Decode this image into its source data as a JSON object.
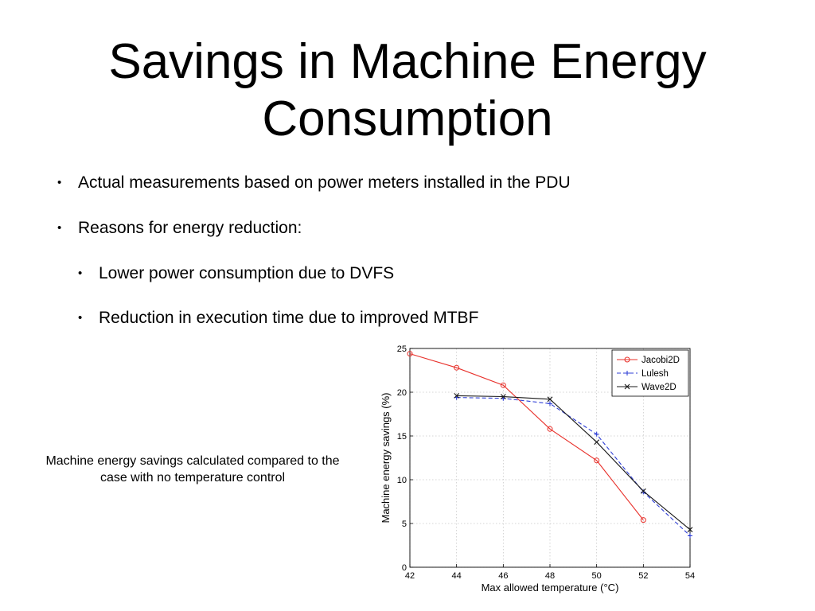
{
  "slide": {
    "title_line1": "Savings in Machine Energy",
    "title_line2": "Consumption",
    "bullets": [
      {
        "text": "Actual measurements based on power meters installed in the PDU",
        "level": 1
      },
      {
        "text": "Reasons for energy reduction:",
        "level": 1
      },
      {
        "text": "Lower power consumption due to DVFS",
        "level": 2
      },
      {
        "text": "Reduction in execution time due to improved MTBF",
        "level": 2
      }
    ],
    "bullet_glyph": "•",
    "caption": "Machine energy savings calculated compared to the case with no temperature control"
  },
  "chart_data": {
    "type": "line",
    "xlabel": "Max allowed temperature (°C)",
    "ylabel": "Machine energy savings (%)",
    "xlim": [
      42,
      54
    ],
    "ylim": [
      0,
      25
    ],
    "xticks": [
      42,
      44,
      46,
      48,
      50,
      52,
      54
    ],
    "yticks": [
      0,
      5,
      10,
      15,
      20,
      25
    ],
    "grid": true,
    "legend_position": "top-right",
    "series": [
      {
        "name": "Jacobi2D",
        "color": "#e8302a",
        "marker": "circle",
        "line": "solid",
        "x": [
          42,
          44,
          46,
          48,
          50,
          52
        ],
        "y": [
          24.4,
          22.8,
          20.8,
          15.8,
          12.2,
          5.4
        ]
      },
      {
        "name": "Lulesh",
        "color": "#2f3fd6",
        "marker": "plus",
        "line": "dashed",
        "x": [
          44,
          46,
          48,
          50,
          52,
          54
        ],
        "y": [
          19.4,
          19.3,
          18.7,
          15.2,
          8.6,
          3.6
        ]
      },
      {
        "name": "Wave2D",
        "color": "#1a1a1a",
        "marker": "x",
        "line": "solid",
        "x": [
          44,
          46,
          48,
          50,
          52,
          54
        ],
        "y": [
          19.6,
          19.5,
          19.2,
          14.3,
          8.7,
          4.3
        ]
      }
    ]
  }
}
